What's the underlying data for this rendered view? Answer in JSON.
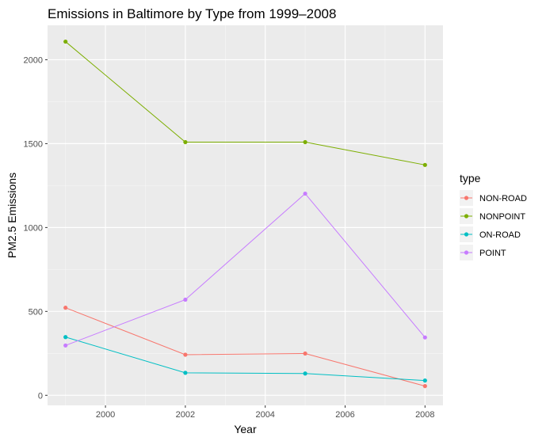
{
  "chart_data": {
    "type": "line",
    "title": "Emissions in Baltimore by Type from 1999–2008",
    "xlabel": "Year",
    "ylabel": "PM2.5 Emissions",
    "x": [
      1999,
      2002,
      2005,
      2008
    ],
    "xlim": [
      1998.55,
      2008.45
    ],
    "ylim": [
      -60,
      2205
    ],
    "xticks": [
      2000,
      2002,
      2004,
      2006,
      2008
    ],
    "xtick_labels": [
      "2000",
      "2002",
      "2004",
      "2006",
      "2008"
    ],
    "yticks": [
      0,
      500,
      1000,
      1500,
      2000
    ],
    "ytick_labels": [
      "0",
      "500",
      "1000",
      "1500",
      "2000"
    ],
    "grid": true,
    "legend": {
      "title": "type",
      "position": "right"
    },
    "series": [
      {
        "name": "NON-ROAD",
        "color": "#F8766D",
        "values": [
          522,
          242,
          249,
          55
        ]
      },
      {
        "name": "NONPOINT",
        "color": "#7CAE00",
        "values": [
          2108,
          1509,
          1509,
          1373
        ]
      },
      {
        "name": "ON-ROAD",
        "color": "#00BFC4",
        "values": [
          347,
          134,
          130,
          88
        ]
      },
      {
        "name": "POINT",
        "color": "#C77CFF",
        "values": [
          297,
          570,
          1202,
          345
        ]
      }
    ]
  }
}
